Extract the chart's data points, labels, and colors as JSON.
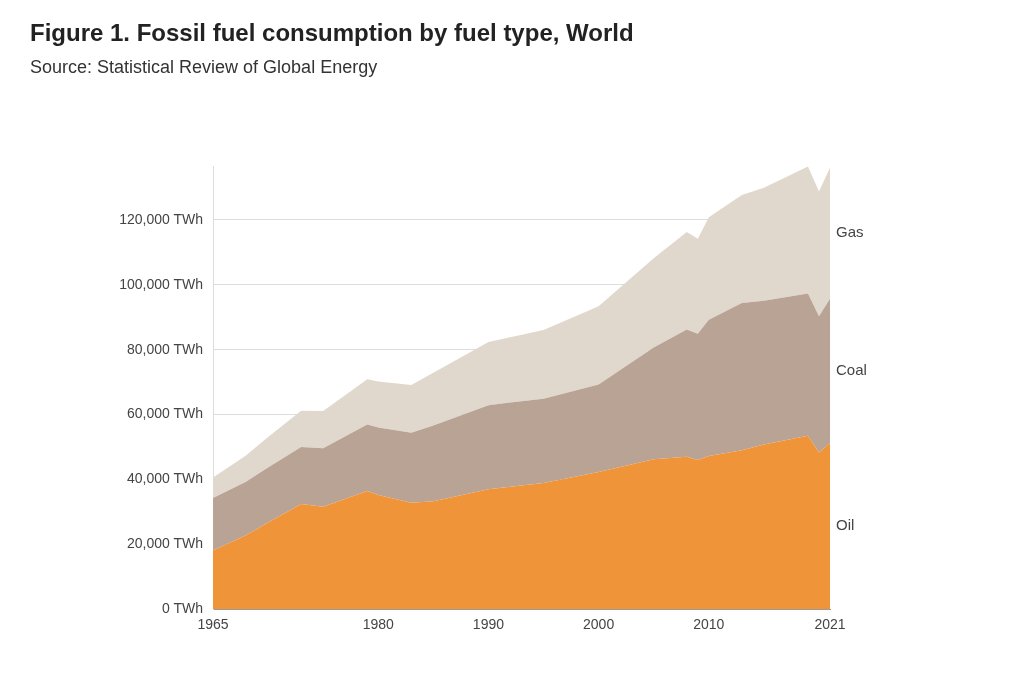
{
  "chart_data": {
    "type": "area",
    "title": "Figure 1. Fossil fuel consumption by fuel type, World",
    "annotations": [
      "Source: Statistical Review of Global Energy"
    ],
    "x": [
      1965,
      1968,
      1970,
      1973,
      1975,
      1979,
      1980,
      1983,
      1985,
      1990,
      1995,
      2000,
      2005,
      2008,
      2009,
      2010,
      2013,
      2015,
      2019,
      2020,
      2021
    ],
    "stacked": true,
    "series": [
      {
        "name": "Oil",
        "color": "#f0943a",
        "values": [
          18100,
          22800,
          26700,
          32400,
          31600,
          36400,
          35200,
          32800,
          33300,
          37000,
          38900,
          42300,
          46200,
          47000,
          46000,
          47200,
          49000,
          50800,
          53500,
          48300,
          51200
        ]
      },
      {
        "name": "Coal",
        "color": "#b9a395",
        "values": [
          16200,
          16500,
          17000,
          17600,
          18000,
          20500,
          20800,
          21600,
          23300,
          25900,
          26000,
          27000,
          34500,
          39200,
          38900,
          42000,
          45400,
          44300,
          43800,
          42000,
          44500
        ]
      },
      {
        "name": "Gas",
        "color": "#e0d8cc",
        "values": [
          6300,
          8100,
          9400,
          11200,
          11500,
          14000,
          14200,
          14700,
          16300,
          19500,
          21200,
          24100,
          27500,
          30100,
          29300,
          31600,
          33300,
          34800,
          39200,
          38500,
          40400
        ]
      }
    ],
    "xlim": [
      1965,
      2021
    ],
    "xticks": [
      1965,
      1980,
      1990,
      2000,
      2010,
      2021
    ],
    "yticks": [
      {
        "value": 0,
        "label": "0 TWh"
      },
      {
        "value": 20000,
        "label": "20,000 TWh"
      },
      {
        "value": 40000,
        "label": "40,000 TWh"
      },
      {
        "value": 60000,
        "label": "60,000 TWh"
      },
      {
        "value": 80000,
        "label": "80,000 TWh"
      },
      {
        "value": 100000,
        "label": "100,000 TWh"
      },
      {
        "value": 120000,
        "label": "120,000 TWh"
      }
    ],
    "ylim": [
      0,
      136500
    ],
    "grid": "y",
    "legend": false
  }
}
